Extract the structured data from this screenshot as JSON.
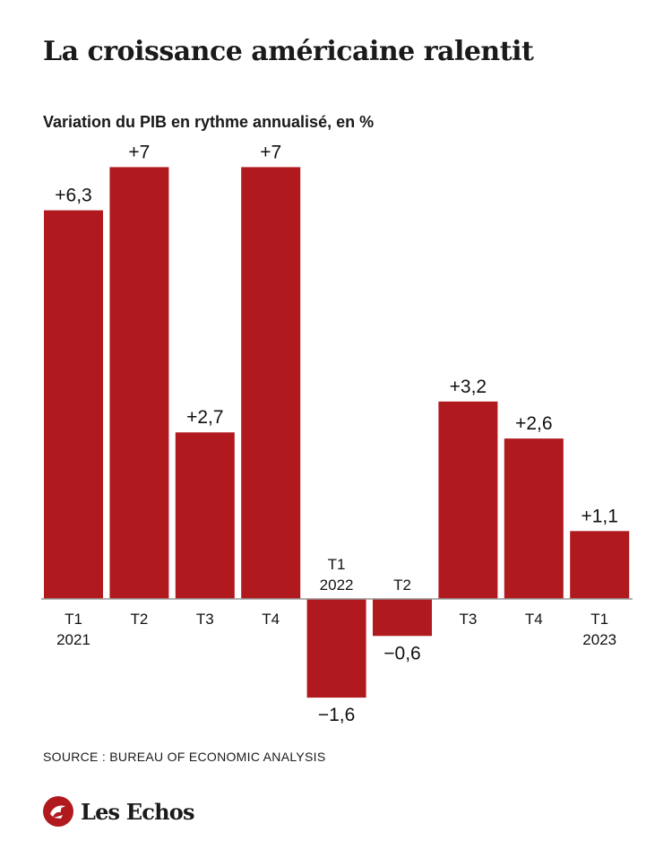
{
  "title": "La croissance américaine ralentit",
  "subtitle": "Variation du PIB en rythme annualisé, en %",
  "source": "SOURCE :  BUREAU OF ECONOMIC ANALYSIS",
  "brand": "Les Echos",
  "colors": {
    "bar": "#b0191e",
    "axis": "#999999",
    "text": "#111111"
  },
  "chart_data": {
    "type": "bar",
    "categories": [
      "T1 2021",
      "T2",
      "T3",
      "T4",
      "T1 2022",
      "T2",
      "T3",
      "T4",
      "T1 2023"
    ],
    "tick_labels": [
      [
        "T1",
        "2021"
      ],
      [
        "T2"
      ],
      [
        "T3"
      ],
      [
        "T4"
      ],
      [
        "T1",
        "2022"
      ],
      [
        "T2"
      ],
      [
        "T3"
      ],
      [
        "T4"
      ],
      [
        "T1",
        "2023"
      ]
    ],
    "values": [
      6.3,
      7,
      2.7,
      7,
      -1.6,
      -0.6,
      3.2,
      2.6,
      1.1
    ],
    "value_labels": [
      "+6,3",
      "+7",
      "+2,7",
      "+7",
      "−1,6",
      "−0,6",
      "+3,2",
      "+2,6",
      "+1,1"
    ],
    "ylabel": "Variation du PIB en rythme annualisé, en %",
    "ylim": [
      -1.6,
      7
    ],
    "grid": false,
    "legend": "none"
  }
}
